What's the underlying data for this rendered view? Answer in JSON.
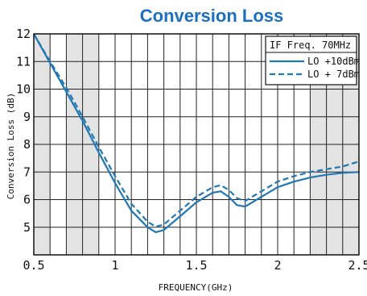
{
  "chart_data": {
    "type": "line",
    "title": "Conversion Loss",
    "xlabel": "FREQUENCY(GHz)",
    "ylabel": "Conversion Loss (dB)",
    "xlim": [
      0.5,
      2.5
    ],
    "ylim": [
      4,
      12
    ],
    "x_ticks": [
      "0.5",
      "1",
      "1.5",
      "2",
      "2.5"
    ],
    "y_ticks": [
      "5",
      "6",
      "7",
      "8",
      "9",
      "10",
      "11",
      "12"
    ],
    "grid": true,
    "shaded_bands": [
      [
        0.5,
        0.6
      ],
      [
        0.7,
        0.9
      ],
      [
        2.2,
        2.5
      ]
    ],
    "legend_header": "IF Freq.  70MHz",
    "legend_position": "top-right",
    "color": "#1f77b4",
    "series": [
      {
        "name": "LO +10dBm",
        "style": "solid",
        "x": [
          0.5,
          0.6,
          0.7,
          0.8,
          0.9,
          1.0,
          1.1,
          1.2,
          1.25,
          1.3,
          1.4,
          1.5,
          1.6,
          1.65,
          1.7,
          1.75,
          1.8,
          1.9,
          2.0,
          2.1,
          2.2,
          2.3,
          2.4,
          2.5
        ],
        "y": [
          12.0,
          10.95,
          9.9,
          8.85,
          7.7,
          6.6,
          5.6,
          5.0,
          4.82,
          4.9,
          5.4,
          5.9,
          6.25,
          6.3,
          6.1,
          5.8,
          5.75,
          6.1,
          6.45,
          6.65,
          6.8,
          6.9,
          6.97,
          7.0
        ]
      },
      {
        "name": "LO + 7dBm",
        "style": "dashed",
        "x": [
          0.5,
          0.6,
          0.7,
          0.8,
          0.9,
          1.0,
          1.1,
          1.2,
          1.25,
          1.3,
          1.4,
          1.5,
          1.6,
          1.65,
          1.7,
          1.75,
          1.8,
          1.9,
          2.0,
          2.1,
          2.2,
          2.3,
          2.4,
          2.5
        ],
        "y": [
          12.0,
          11.0,
          10.05,
          9.0,
          7.9,
          6.85,
          5.85,
          5.2,
          5.02,
          5.1,
          5.6,
          6.1,
          6.45,
          6.52,
          6.35,
          6.05,
          5.95,
          6.3,
          6.65,
          6.85,
          7.0,
          7.1,
          7.2,
          7.38
        ]
      }
    ]
  }
}
